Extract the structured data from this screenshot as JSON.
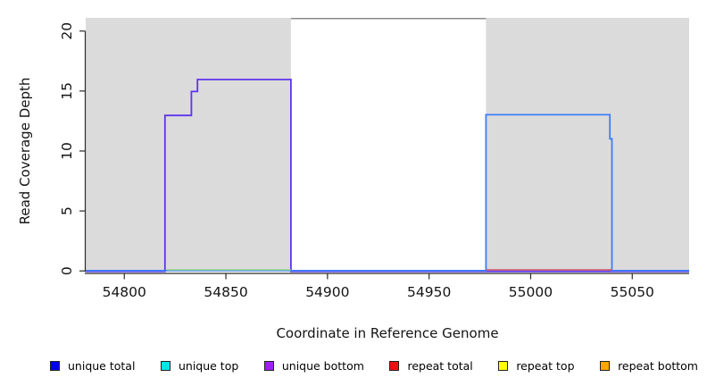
{
  "chart_data": {
    "type": "line",
    "subtype": "step-coverage",
    "title": "",
    "xlabel": "Coordinate in Reference Genome",
    "ylabel": "Read Coverage Depth",
    "xlim": [
      54781,
      55078
    ],
    "ylim": [
      0,
      21.1
    ],
    "x_ticks": [
      54800,
      54850,
      54900,
      54950,
      55000,
      55050
    ],
    "y_ticks": [
      0,
      5,
      10,
      15,
      20
    ],
    "grid": false,
    "axis_color": "#2a2a2a",
    "shaded_regions": [
      {
        "name": "left-shaded-region",
        "x0": 54781,
        "x1": 54882,
        "color": "#DBDBDB"
      },
      {
        "name": "right-shaded-region",
        "x0": 54978,
        "x1": 55078,
        "color": "#DBDBDB"
      }
    ],
    "top_edge_segment": {
      "x0": 54882,
      "x1": 54978,
      "color": "#8B8B8B"
    },
    "series": [
      {
        "name": "unique bottom coverage",
        "color": "#5E33EF",
        "points": [
          [
            54781,
            0
          ],
          [
            54820,
            0
          ],
          [
            54820,
            13
          ],
          [
            54833,
            13
          ],
          [
            54833,
            15
          ],
          [
            54836,
            15
          ],
          [
            54836,
            16
          ],
          [
            54882,
            16
          ],
          [
            54882,
            0
          ],
          [
            55078,
            0
          ]
        ]
      },
      {
        "name": "unique total coverage",
        "color": "#3F7DF6",
        "points": [
          [
            54781,
            0
          ],
          [
            54978,
            0
          ],
          [
            54978,
            13
          ],
          [
            55039,
            13
          ],
          [
            55039,
            11
          ],
          [
            55040,
            11
          ],
          [
            55040,
            0
          ],
          [
            55078,
            0
          ]
        ]
      },
      {
        "name": "left zero segment (green)",
        "color": "#97D58F",
        "points": [
          [
            54821,
            0
          ],
          [
            54882,
            0
          ]
        ]
      },
      {
        "name": "right zero segment (red)",
        "color": "#D25563",
        "points": [
          [
            54978,
            0
          ],
          [
            55040,
            0
          ]
        ]
      }
    ],
    "legend": {
      "position": "bottom",
      "items": [
        {
          "label": "unique total",
          "color": "#0000EE"
        },
        {
          "label": "unique top",
          "color": "#00E6E6"
        },
        {
          "label": "unique bottom",
          "color": "#A020F0"
        },
        {
          "label": "repeat total",
          "color": "#EE1111"
        },
        {
          "label": "repeat top",
          "color": "#FFFF00"
        },
        {
          "label": "repeat bottom",
          "color": "#FFA500"
        }
      ]
    }
  }
}
